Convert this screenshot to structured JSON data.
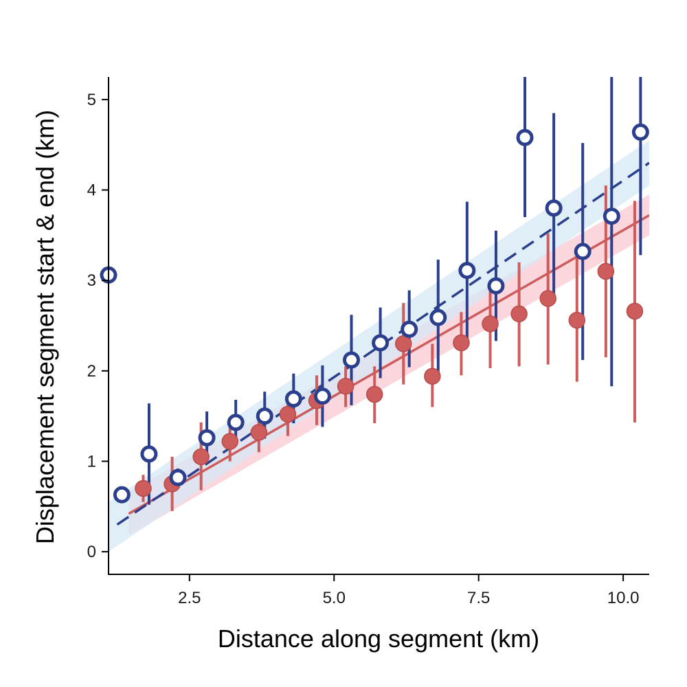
{
  "chart_data": {
    "type": "scatter",
    "title": "",
    "xlabel": "Distance along segment (km)",
    "ylabel": "Displacement segment start & end (km)",
    "xlim": [
      1.1,
      10.45
    ],
    "ylim": [
      -0.25,
      5.25
    ],
    "x_ticks": [
      2.5,
      5.0,
      7.5,
      10.0
    ],
    "x_tick_labels": [
      "2.5",
      "5.0",
      "7.5",
      "10.0"
    ],
    "y_ticks": [
      0,
      1,
      2,
      3,
      4,
      5
    ],
    "y_tick_labels": [
      "0",
      "1",
      "2",
      "3",
      "4",
      "5"
    ],
    "grid": false,
    "legend": "none",
    "series": [
      {
        "color": "#cd5c5c",
        "marker": "filled-circle",
        "line_style": "solid",
        "band_color": "#f9c8d2",
        "fit": {
          "x": [
            1.45,
            10.45
          ],
          "y": [
            0.42,
            3.72
          ]
        },
        "band": {
          "x": [
            1.45,
            10.45
          ],
          "lower": [
            0.18,
            3.5
          ],
          "upper": [
            0.66,
            3.95
          ]
        },
        "points": [
          {
            "x": 1.7,
            "y": 0.7,
            "lo": 0.55,
            "hi": 0.85
          },
          {
            "x": 2.2,
            "y": 0.75,
            "lo": 0.45,
            "hi": 1.05
          },
          {
            "x": 2.7,
            "y": 1.05,
            "lo": 0.68,
            "hi": 1.43
          },
          {
            "x": 3.2,
            "y": 1.22,
            "lo": 1.0,
            "hi": 1.45
          },
          {
            "x": 3.7,
            "y": 1.32,
            "lo": 1.1,
            "hi": 1.55
          },
          {
            "x": 4.2,
            "y": 1.52,
            "lo": 1.28,
            "hi": 1.75
          },
          {
            "x": 4.7,
            "y": 1.67,
            "lo": 1.4,
            "hi": 1.95
          },
          {
            "x": 5.2,
            "y": 1.83,
            "lo": 1.6,
            "hi": 2.05
          },
          {
            "x": 5.7,
            "y": 1.74,
            "lo": 1.42,
            "hi": 2.05
          },
          {
            "x": 6.2,
            "y": 2.3,
            "lo": 1.85,
            "hi": 2.75
          },
          {
            "x": 6.7,
            "y": 1.94,
            "lo": 1.6,
            "hi": 2.3
          },
          {
            "x": 7.2,
            "y": 2.31,
            "lo": 1.95,
            "hi": 2.65
          },
          {
            "x": 7.7,
            "y": 2.52,
            "lo": 2.03,
            "hi": 3.0
          },
          {
            "x": 8.2,
            "y": 2.63,
            "lo": 2.05,
            "hi": 3.2
          },
          {
            "x": 8.7,
            "y": 2.8,
            "lo": 2.07,
            "hi": 3.52
          },
          {
            "x": 9.2,
            "y": 2.56,
            "lo": 1.88,
            "hi": 3.25
          },
          {
            "x": 9.7,
            "y": 3.1,
            "lo": 2.15,
            "hi": 4.05
          },
          {
            "x": 10.2,
            "y": 2.66,
            "lo": 1.43,
            "hi": 3.88
          }
        ]
      },
      {
        "color": "#2b3f8c",
        "marker": "open-circle",
        "line_style": "dashed",
        "band_color": "#d6e8f5",
        "fit": {
          "x": [
            1.25,
            10.45
          ],
          "y": [
            0.3,
            4.3
          ]
        },
        "band": {
          "x": [
            1.1,
            10.45
          ],
          "lower": [
            0.0,
            4.05
          ],
          "upper": [
            0.55,
            4.55
          ]
        },
        "points": [
          {
            "x": 1.1,
            "y": 3.06,
            "lo": 3.06,
            "hi": 3.06
          },
          {
            "x": 1.33,
            "y": 0.63,
            "lo": 0.55,
            "hi": 0.72
          },
          {
            "x": 1.8,
            "y": 1.08,
            "lo": 0.52,
            "hi": 1.64
          },
          {
            "x": 2.3,
            "y": 0.82,
            "lo": 0.73,
            "hi": 0.92
          },
          {
            "x": 2.8,
            "y": 1.26,
            "lo": 0.98,
            "hi": 1.55
          },
          {
            "x": 3.3,
            "y": 1.43,
            "lo": 1.18,
            "hi": 1.68
          },
          {
            "x": 3.8,
            "y": 1.5,
            "lo": 1.25,
            "hi": 1.77
          },
          {
            "x": 4.3,
            "y": 1.69,
            "lo": 1.42,
            "hi": 1.97
          },
          {
            "x": 4.8,
            "y": 1.72,
            "lo": 1.38,
            "hi": 2.06
          },
          {
            "x": 5.3,
            "y": 2.12,
            "lo": 1.62,
            "hi": 2.62
          },
          {
            "x": 5.8,
            "y": 2.31,
            "lo": 1.92,
            "hi": 2.7
          },
          {
            "x": 6.3,
            "y": 2.46,
            "lo": 2.04,
            "hi": 2.89
          },
          {
            "x": 6.8,
            "y": 2.59,
            "lo": 1.95,
            "hi": 3.23
          },
          {
            "x": 7.3,
            "y": 3.11,
            "lo": 2.35,
            "hi": 3.87
          },
          {
            "x": 7.8,
            "y": 2.94,
            "lo": 2.33,
            "hi": 3.55
          },
          {
            "x": 8.3,
            "y": 4.58,
            "lo": 3.7,
            "hi": 5.25
          },
          {
            "x": 8.8,
            "y": 3.8,
            "lo": 2.75,
            "hi": 4.85
          },
          {
            "x": 9.3,
            "y": 3.32,
            "lo": 2.12,
            "hi": 4.52
          },
          {
            "x": 9.8,
            "y": 3.71,
            "lo": 1.83,
            "hi": 5.25
          },
          {
            "x": 10.3,
            "y": 4.64,
            "lo": 3.28,
            "hi": 5.25
          }
        ]
      }
    ]
  }
}
